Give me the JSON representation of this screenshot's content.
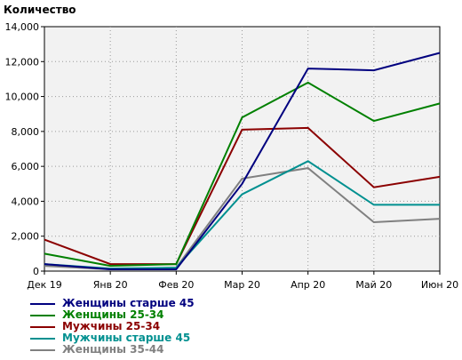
{
  "chart_data": {
    "type": "line",
    "ylabel": "Количество",
    "categories": [
      "Дек 19",
      "Янв 20",
      "Фев 20",
      "Мар 20",
      "Апр 20",
      "Май 20",
      "Июн 20"
    ],
    "y_ticks": [
      "0",
      "2,000",
      "4,000",
      "6,000",
      "8,000",
      "10,000",
      "12,000",
      "14,000"
    ],
    "ylim": [
      0,
      14000
    ],
    "grid": true,
    "legend_placement": "bottom-left",
    "series": [
      {
        "name": "Женщины старше 45",
        "color": "#00007f",
        "values": [
          400,
          100,
          100,
          5000,
          11600,
          11500,
          12500
        ]
      },
      {
        "name": "Женщины 25-34",
        "color": "#008000",
        "values": [
          1000,
          300,
          400,
          8800,
          10800,
          8600,
          9600
        ]
      },
      {
        "name": "Мужчины 25-34",
        "color": "#8b0000",
        "values": [
          1800,
          400,
          400,
          8100,
          8200,
          4800,
          5400
        ]
      },
      {
        "name": "Мужчины старше 45",
        "color": "#009090",
        "values": [
          400,
          150,
          200,
          4400,
          6300,
          3800,
          3800
        ]
      },
      {
        "name": "Женщины 35-44",
        "color": "#808080",
        "values": [
          300,
          100,
          200,
          5300,
          5900,
          2800,
          3000
        ]
      }
    ]
  }
}
